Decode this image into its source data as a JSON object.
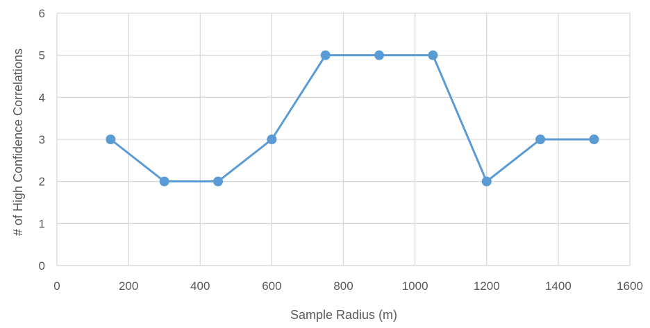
{
  "chart_data": {
    "type": "line",
    "title": "",
    "xlabel": "Sample Radius (m)",
    "ylabel": "# of High Confidence Correlations",
    "xlim": [
      0,
      1600
    ],
    "ylim": [
      0,
      6
    ],
    "x_ticks": [
      "0",
      "200",
      "400",
      "600",
      "800",
      "1000",
      "1200",
      "1400",
      "1600"
    ],
    "y_ticks": [
      "0",
      "1",
      "2",
      "3",
      "4",
      "5",
      "6"
    ],
    "grid": true,
    "legend": "none",
    "series": [
      {
        "x": [
          150,
          300,
          450,
          600,
          750,
          900,
          1050,
          1200,
          1350,
          1500
        ],
        "y": [
          3,
          2,
          2,
          3,
          5,
          5,
          5,
          2,
          3,
          3
        ],
        "color": "#5b9bd5",
        "marker": "circle"
      }
    ]
  },
  "colors": {
    "series": "#5b9bd5",
    "grid": "#d9d9d9",
    "text": "#595959"
  }
}
